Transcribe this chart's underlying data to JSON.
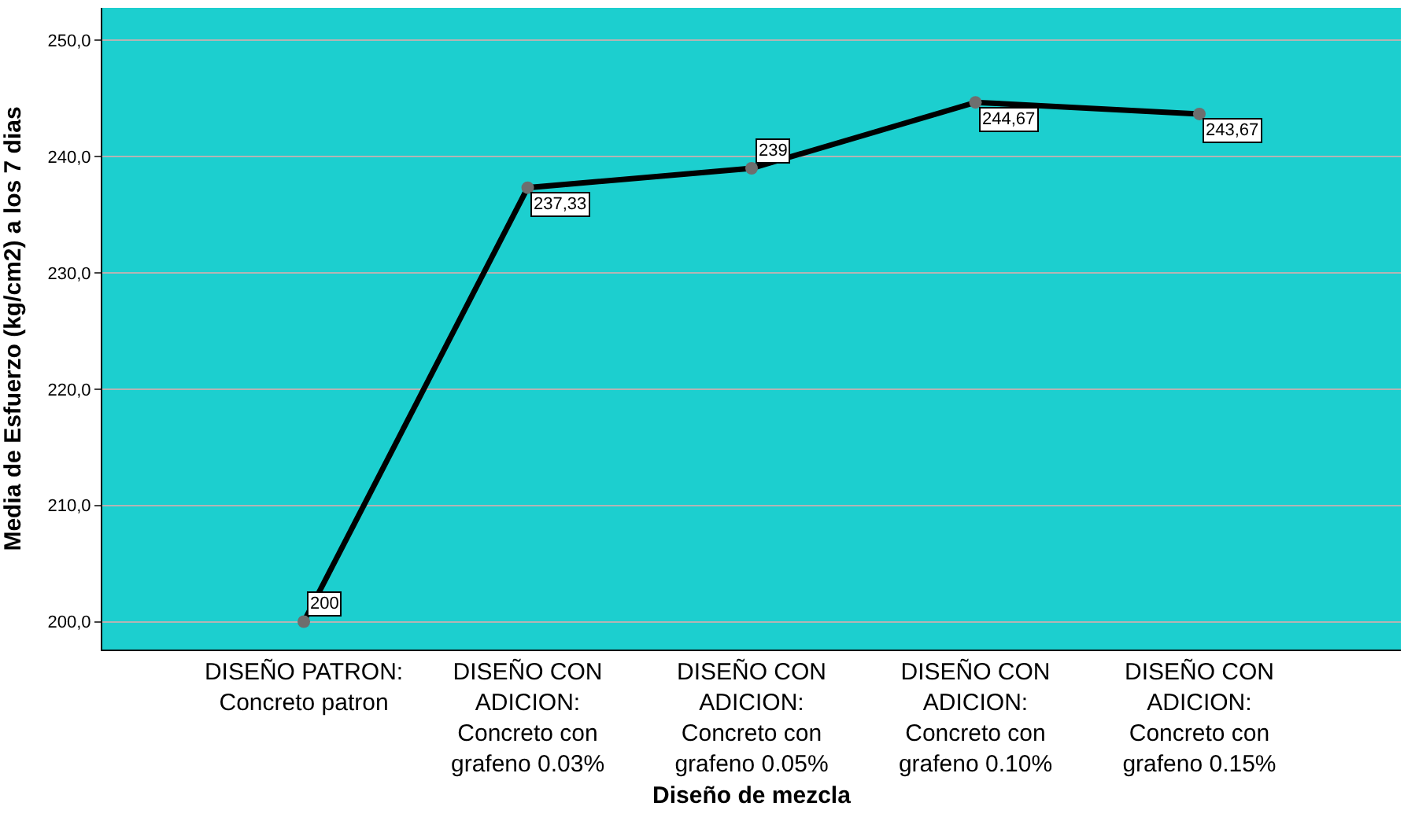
{
  "chart_data": {
    "type": "line",
    "xlabel": "Diseño de mezcla",
    "ylabel": "Media de Esfuerzo (kg/cm2) a los 7 dias",
    "categories": [
      "DISEÑO PATRON: Concreto patron",
      "DISEÑO CON ADICION: Concreto con grafeno 0.03%",
      "DISEÑO CON ADICION: Concreto con grafeno 0.05%",
      "DISEÑO CON ADICION: Concreto con grafeno 0.10%",
      "DISEÑO CON ADICION: Concreto con grafeno 0.15%"
    ],
    "series": [
      {
        "color": "#000000",
        "values": [
          200,
          237.33,
          239,
          244.67,
          243.67
        ]
      }
    ],
    "value_labels": [
      "200",
      "237,33",
      "239",
      "244,67",
      "243,67"
    ],
    "ylim": [
      197.6,
      252.8
    ],
    "yticks": [
      {
        "value": 200,
        "label": "200,0"
      },
      {
        "value": 210,
        "label": "210,0"
      },
      {
        "value": 220,
        "label": "220,0"
      },
      {
        "value": 230,
        "label": "230,0"
      },
      {
        "value": 240,
        "label": "240,0"
      },
      {
        "value": 250,
        "label": "250,0"
      }
    ],
    "grid": "y",
    "marker": "circle",
    "line_style": "solid"
  }
}
